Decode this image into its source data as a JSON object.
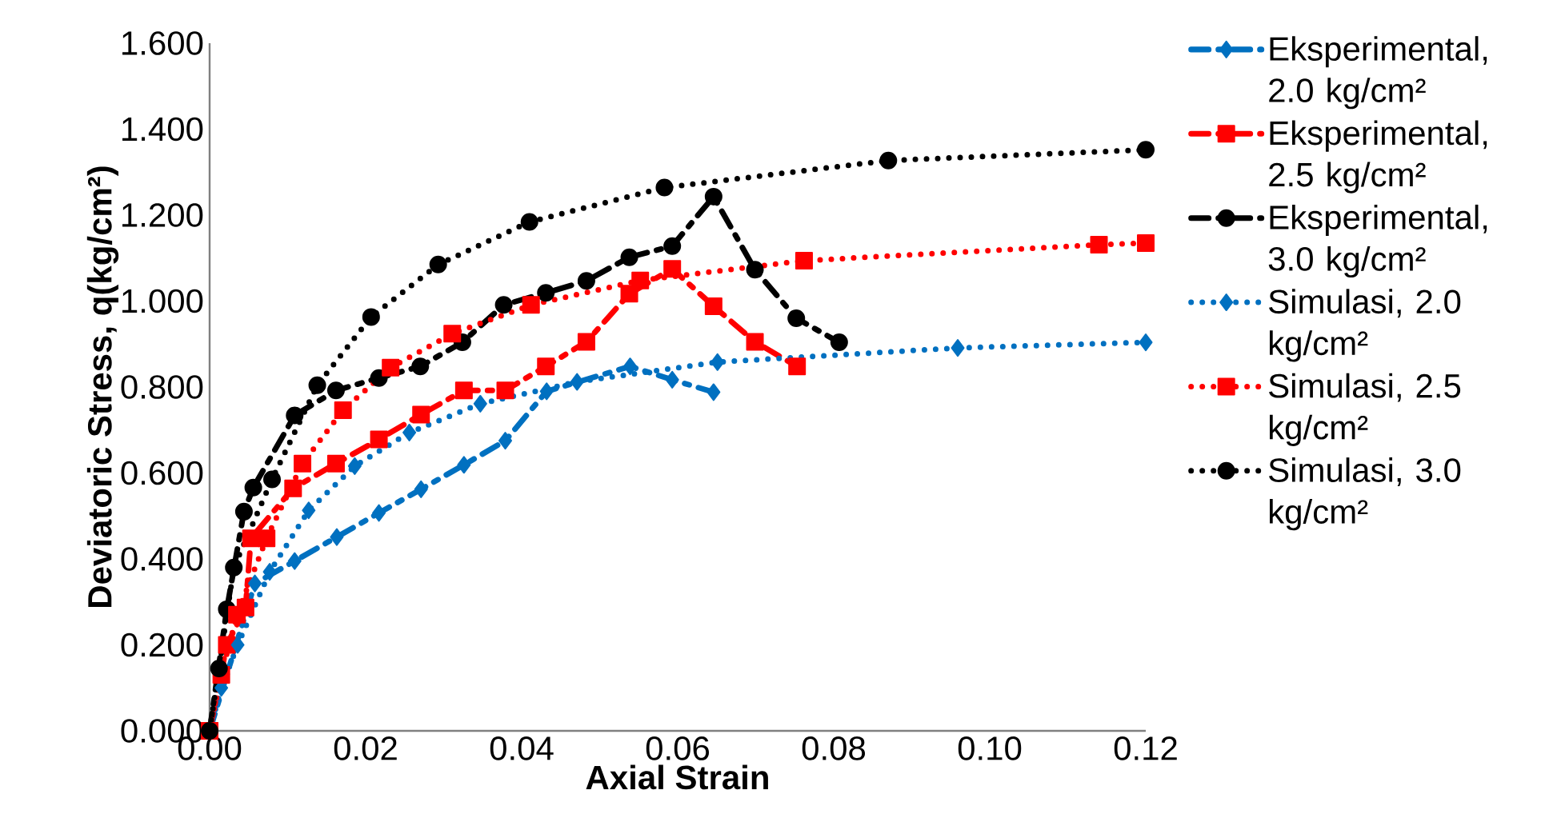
{
  "chart_data": {
    "type": "line",
    "xlabel": "Axial Strain",
    "ylabel": "Deviatoric Stress, q(kg/cm²)",
    "xlim": [
      0,
      0.12
    ],
    "ylim": [
      0,
      1.6
    ],
    "xticks": [
      {
        "value": 0,
        "label": "0.00"
      },
      {
        "value": 0.02,
        "label": "0.02"
      },
      {
        "value": 0.04,
        "label": "0.04"
      },
      {
        "value": 0.06,
        "label": "0.06"
      },
      {
        "value": 0.08,
        "label": "0.08"
      },
      {
        "value": 0.1,
        "label": "0.10"
      },
      {
        "value": 0.12,
        "label": "0.12"
      }
    ],
    "yticks": [
      {
        "value": 0,
        "label": "0.000"
      },
      {
        "value": 0.2,
        "label": "0.200"
      },
      {
        "value": 0.4,
        "label": "0.400"
      },
      {
        "value": 0.6,
        "label": "0.600"
      },
      {
        "value": 0.8,
        "label": "0.800"
      },
      {
        "value": 1.0,
        "label": "1.000"
      },
      {
        "value": 1.2,
        "label": "1.200"
      },
      {
        "value": 1.4,
        "label": "1.400"
      },
      {
        "value": 1.6,
        "label": "1.600"
      }
    ],
    "grid": false,
    "legend": "right",
    "series": [
      {
        "name": "Eksperimental, 2.0 kg/cm²",
        "color": "#0070c0",
        "marker": "diamond",
        "line_style": "dashed",
        "x": [
          0,
          0.0058,
          0.0109,
          0.0163,
          0.0217,
          0.0271,
          0.0326,
          0.0379,
          0.0432,
          0.0539,
          0.0593,
          0.0646
        ],
        "values": [
          0,
          0.343,
          0.395,
          0.451,
          0.507,
          0.562,
          0.619,
          0.675,
          0.79,
          0.848,
          0.817,
          0.788
        ]
      },
      {
        "name": "Eksperimental, 2.5 kg/cm²",
        "color": "#ff0000",
        "marker": "square",
        "line_style": "dashed",
        "x": [
          0,
          0.0022,
          0.0046,
          0.0053,
          0.0107,
          0.0162,
          0.0217,
          0.0271,
          0.0326,
          0.0379,
          0.0431,
          0.0483,
          0.0538,
          0.0593,
          0.0646,
          0.0699,
          0.0753
        ],
        "values": [
          0,
          0.2,
          0.287,
          0.448,
          0.564,
          0.622,
          0.678,
          0.736,
          0.792,
          0.792,
          0.848,
          0.905,
          1.017,
          1.075,
          0.988,
          0.905,
          0.848
        ]
      },
      {
        "name": "Eksperimental, 3.0 kg/cm²",
        "color": "#000000",
        "marker": "circle",
        "line_style": "dashed",
        "x": [
          0,
          0.0022,
          0.0044,
          0.0056,
          0.0109,
          0.0162,
          0.0217,
          0.027,
          0.0324,
          0.0377,
          0.0431,
          0.0483,
          0.0538,
          0.0593,
          0.0646,
          0.0699,
          0.0752,
          0.0807
        ],
        "values": [
          0,
          0.283,
          0.51,
          0.566,
          0.734,
          0.792,
          0.821,
          0.848,
          0.904,
          0.991,
          1.019,
          1.047,
          1.102,
          1.128,
          1.243,
          1.073,
          0.96,
          0.904
        ]
      },
      {
        "name": "Simulasi, 2.0 kg/cm²",
        "color": "#0070c0",
        "marker": "diamond",
        "line_style": "dotted",
        "x": [
          0,
          0.0015,
          0.0036,
          0.0077,
          0.0127,
          0.0186,
          0.0256,
          0.0347,
          0.0471,
          0.0651,
          0.0959,
          0.12
        ],
        "values": [
          0,
          0.1,
          0.2,
          0.37,
          0.513,
          0.616,
          0.694,
          0.761,
          0.812,
          0.858,
          0.891,
          0.904
        ]
      },
      {
        "name": "Simulasi, 2.5 kg/cm²",
        "color": "#ff0000",
        "marker": "square",
        "line_style": "dotted",
        "x": [
          0,
          0.0015,
          0.0035,
          0.0073,
          0.0119,
          0.0171,
          0.0232,
          0.0311,
          0.0412,
          0.0552,
          0.0762,
          0.114,
          0.12
        ],
        "values": [
          0,
          0.13,
          0.27,
          0.448,
          0.622,
          0.746,
          0.845,
          0.924,
          0.991,
          1.048,
          1.094,
          1.131,
          1.135
        ]
      },
      {
        "name": "Simulasi, 3.0 kg/cm²",
        "color": "#000000",
        "marker": "circle",
        "line_style": "dotted",
        "x": [
          0,
          0.0012,
          0.0031,
          0.008,
          0.0138,
          0.0207,
          0.0293,
          0.041,
          0.0583,
          0.087,
          0.12
        ],
        "values": [
          0,
          0.145,
          0.38,
          0.585,
          0.804,
          0.963,
          1.085,
          1.184,
          1.264,
          1.327,
          1.352
        ]
      }
    ]
  }
}
